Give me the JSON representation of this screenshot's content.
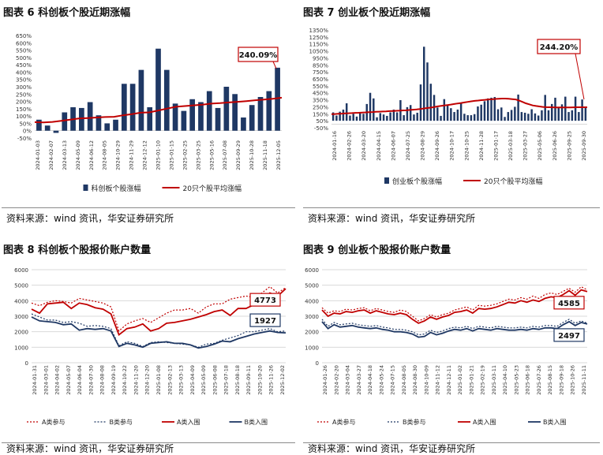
{
  "titles": {
    "c6": "图表 6 科创板个股近期涨幅",
    "c7": "图表 7 创业板个股近期涨幅",
    "c8": "图表 8 科创板个股报价账户数量",
    "c9": "图表 9 创业板个股报价账户数量"
  },
  "source": "资料来源：wind 资讯，华安证券研究所",
  "colors": {
    "bar": "#1f3864",
    "line": "#c00000",
    "series_b": "#1f3864"
  },
  "chart_data": [
    {
      "id": "c6",
      "type": "bar",
      "ylim": [
        -50,
        650
      ],
      "yticks": [
        "-50%",
        "0%",
        "50%",
        "100%",
        "150%",
        "200%",
        "250%",
        "300%",
        "350%",
        "400%",
        "450%",
        "500%",
        "550%",
        "600%",
        "650%"
      ],
      "xticks": [
        "2024-01-03",
        "2024-02-07",
        "2024-03-13",
        "2024-05-09",
        "2024-06-12",
        "2024-08-05",
        "2024-10-29",
        "2024-11-29",
        "2024-12-12",
        "2025-01-10",
        "2025-01-15",
        "2025-02-25",
        "2025-03-25",
        "2025-05-16",
        "2025-07-08",
        "2025-09-29",
        "2025-10-28",
        "2025-11-18",
        "2025-12-05"
      ],
      "bars": [
        75,
        35,
        -15,
        125,
        160,
        155,
        195,
        105,
        50,
        75,
        320,
        320,
        415,
        160,
        560,
        415,
        185,
        135,
        215,
        195,
        270,
        155,
        300,
        250,
        90,
        175,
        230,
        270,
        430
      ],
      "line": [
        58,
        56,
        60,
        67,
        75,
        83,
        86,
        90,
        93,
        95,
        105,
        113,
        123,
        125,
        138,
        151,
        163,
        168,
        173,
        178,
        185,
        188,
        193,
        197,
        202,
        208,
        212,
        218,
        225
      ],
      "legend": [
        "科创板个股涨幅",
        "20只个股平均涨幅"
      ],
      "annotation": "240.09%"
    },
    {
      "id": "c7",
      "type": "bar",
      "ylim": [
        -50,
        1350
      ],
      "yticks": [
        "-50%",
        "50%",
        "150%",
        "250%",
        "350%",
        "450%",
        "550%",
        "650%",
        "750%",
        "850%",
        "950%",
        "1050%",
        "1150%",
        "1250%",
        "1350%"
      ],
      "xticks": [
        "2024-01-16",
        "2024-02-26",
        "2024-03-20",
        "2024-04-15",
        "2024-06-07",
        "2024-07-25",
        "2024-08-29",
        "2024-09-26",
        "2024-10-17",
        "2024-10-25",
        "2024-11-28",
        "2025-01-17",
        "2025-03-18",
        "2025-03-27",
        "2025-05-06",
        "2025-06-26",
        "2025-09-25",
        "2025-09-30"
      ],
      "bars": [
        170,
        125,
        180,
        210,
        300,
        125,
        150,
        110,
        175,
        150,
        290,
        450,
        370,
        100,
        160,
        140,
        120,
        170,
        210,
        170,
        345,
        130,
        245,
        275,
        140,
        165,
        570,
        1110,
        885,
        580,
        420,
        240,
        120,
        360,
        275,
        230,
        175,
        210,
        305,
        150,
        130,
        130,
        145,
        255,
        280,
        330,
        370,
        380,
        390,
        215,
        240,
        105,
        175,
        205,
        250,
        425,
        175,
        165,
        150,
        215,
        155,
        125,
        200,
        420,
        200,
        290,
        380,
        235,
        285,
        395,
        175,
        200,
        395,
        175,
        355,
        250
      ],
      "line": [
        145,
        147,
        150,
        152,
        155,
        158,
        160,
        163,
        165,
        168,
        170,
        173,
        175,
        178,
        180,
        183,
        185,
        188,
        190,
        193,
        195,
        198,
        200,
        205,
        208,
        212,
        218,
        225,
        232,
        238,
        245,
        255,
        262,
        268,
        275,
        282,
        290,
        298,
        305,
        312,
        320,
        328,
        335,
        340,
        345,
        350,
        355,
        358,
        362,
        365,
        368,
        368,
        365,
        360,
        355,
        340,
        320,
        300,
        285,
        270,
        262,
        255,
        248,
        245,
        243,
        242,
        241,
        240,
        240,
        240,
        241,
        242,
        243,
        243,
        244,
        244
      ],
      "legend": [
        "创业板个股涨幅",
        "20只个股平均涨幅"
      ],
      "annotation": "244.20%"
    },
    {
      "id": "c8",
      "type": "line",
      "ylim": [
        0,
        6000
      ],
      "yticks": [
        "0",
        "1000",
        "2000",
        "3000",
        "4000",
        "5000",
        "6000"
      ],
      "xticks": [
        "2024-01-31",
        "2024-03-01",
        "2024-04-02",
        "2024-05-07",
        "2024-06-04",
        "2024-07-30",
        "2024-08-08",
        "2024-09-19",
        "2024-10-22",
        "2024-11-20",
        "2024-12-20",
        "2025-01-08",
        "2025-02-13",
        "2025-03-13",
        "2025-04-09",
        "2025-05-09",
        "2025-06-08",
        "2025-07-18",
        "2025-08-18",
        "2025-09-11",
        "2025-10-20",
        "2025-11-26",
        "2025-12-02"
      ],
      "series": [
        {
          "name": "A类参与",
          "style": "dotted",
          "color": "#c00000",
          "values": [
            3850,
            3680,
            3900,
            4000,
            3950,
            3850,
            4150,
            4050,
            3950,
            3850,
            3600,
            2050,
            2500,
            2700,
            2850,
            2600,
            2900,
            3200,
            3400,
            3400,
            3500,
            3200,
            3600,
            3800,
            3800,
            4100,
            4200,
            4300,
            4200,
            4500,
            4900,
            4500,
            4850
          ]
        },
        {
          "name": "B类参与",
          "style": "dotted",
          "color": "#1f3864",
          "values": [
            3150,
            2950,
            2750,
            2750,
            2600,
            2650,
            2550,
            2350,
            2400,
            2350,
            2200,
            1100,
            1350,
            1250,
            1050,
            1300,
            1350,
            1300,
            1250,
            1200,
            1150,
            1000,
            1200,
            1250,
            1450,
            1600,
            1750,
            2000,
            2000,
            2100,
            2200,
            2000,
            2050
          ]
        },
        {
          "name": "A类入围",
          "style": "solid",
          "color": "#c00000",
          "values": [
            3450,
            3200,
            3800,
            3850,
            3900,
            3500,
            3850,
            3750,
            3550,
            3450,
            3150,
            1800,
            2200,
            2300,
            2500,
            2050,
            2200,
            2550,
            2600,
            2700,
            2800,
            2950,
            3100,
            3300,
            3400,
            3050,
            3500,
            3500,
            3750,
            4000,
            4500,
            4300,
            4773
          ]
        },
        {
          "name": "B类入围",
          "style": "solid",
          "color": "#1f3864",
          "values": [
            2950,
            2700,
            2650,
            2600,
            2450,
            2500,
            2100,
            2200,
            2150,
            2200,
            2050,
            1050,
            1250,
            1150,
            1000,
            1250,
            1300,
            1350,
            1250,
            1250,
            1150,
            950,
            1050,
            1200,
            1400,
            1350,
            1550,
            1700,
            1850,
            1950,
            2050,
            1950,
            1927
          ]
        }
      ],
      "labels": {
        "a": "4773",
        "b": "1927"
      }
    },
    {
      "id": "c9",
      "type": "line",
      "ylim": [
        0,
        6000
      ],
      "yticks": [
        "0",
        "1000",
        "2000",
        "3000",
        "4000",
        "5000",
        "6000"
      ],
      "xticks": [
        "2024-01-26",
        "2024-02-20",
        "2024-03-04",
        "2024-03-27",
        "2024-04-18",
        "2024-05-24",
        "2024-07-15",
        "2024-08-05",
        "2024-08-30",
        "2024-10-09",
        "2024-11-12",
        "2024-12-11",
        "2025-01-02",
        "2025-01-21",
        "2025-02-19",
        "2025-03-11",
        "2025-04-10",
        "2025-05-23",
        "2025-06-18",
        "2025-07-26",
        "2025-08-15",
        "2025-09-18",
        "2025-10-26",
        "2025-11-11"
      ],
      "series": [
        {
          "name": "A类参与",
          "style": "dotted",
          "color": "#c00000",
          "values": [
            3550,
            3200,
            3350,
            3300,
            3450,
            3400,
            3500,
            3550,
            3350,
            3500,
            3400,
            3300,
            3250,
            3400,
            3300,
            3000,
            2700,
            2850,
            3100,
            2950,
            3100,
            3200,
            3400,
            3500,
            3600,
            3400,
            3700,
            3650,
            3700,
            3800,
            3950,
            4100,
            4050,
            4200,
            4100,
            4300,
            4150,
            4400,
            4500,
            4400,
            4600,
            4800,
            4550,
            4900,
            4700
          ]
        },
        {
          "name": "B类参与",
          "style": "dotted",
          "color": "#1f3864",
          "values": [
            2800,
            2350,
            2600,
            2450,
            2500,
            2550,
            2450,
            2400,
            2350,
            2400,
            2300,
            2250,
            2150,
            2150,
            2100,
            2000,
            1800,
            1850,
            2100,
            1950,
            2050,
            2200,
            2300,
            2250,
            2350,
            2200,
            2350,
            2300,
            2250,
            2350,
            2300,
            2250,
            2250,
            2300,
            2250,
            2350,
            2300,
            2400,
            2400,
            2350,
            2600,
            2800,
            2550,
            2700,
            2550
          ]
        },
        {
          "name": "A类入围",
          "style": "solid",
          "color": "#c00000",
          "values": [
            3400,
            3000,
            3200,
            3150,
            3300,
            3250,
            3350,
            3400,
            3200,
            3350,
            3250,
            3150,
            3100,
            3200,
            3100,
            2800,
            2550,
            2700,
            2950,
            2800,
            2950,
            3050,
            3250,
            3300,
            3400,
            3200,
            3500,
            3450,
            3500,
            3600,
            3750,
            3900,
            3850,
            4000,
            3900,
            4050,
            3950,
            4150,
            4250,
            4200,
            4400,
            4650,
            4350,
            4700,
            4585
          ]
        },
        {
          "name": "B类入围",
          "style": "solid",
          "color": "#1f3864",
          "values": [
            2650,
            2200,
            2450,
            2300,
            2350,
            2400,
            2300,
            2250,
            2200,
            2250,
            2150,
            2100,
            2000,
            2000,
            1950,
            1850,
            1650,
            1700,
            1950,
            1800,
            1900,
            2050,
            2150,
            2100,
            2200,
            2050,
            2200,
            2150,
            2100,
            2200,
            2150,
            2100,
            2100,
            2150,
            2100,
            2200,
            2150,
            2250,
            2250,
            2200,
            2450,
            2650,
            2400,
            2600,
            2497
          ]
        }
      ],
      "labels": {
        "a": "4585",
        "b": "2497"
      }
    }
  ]
}
